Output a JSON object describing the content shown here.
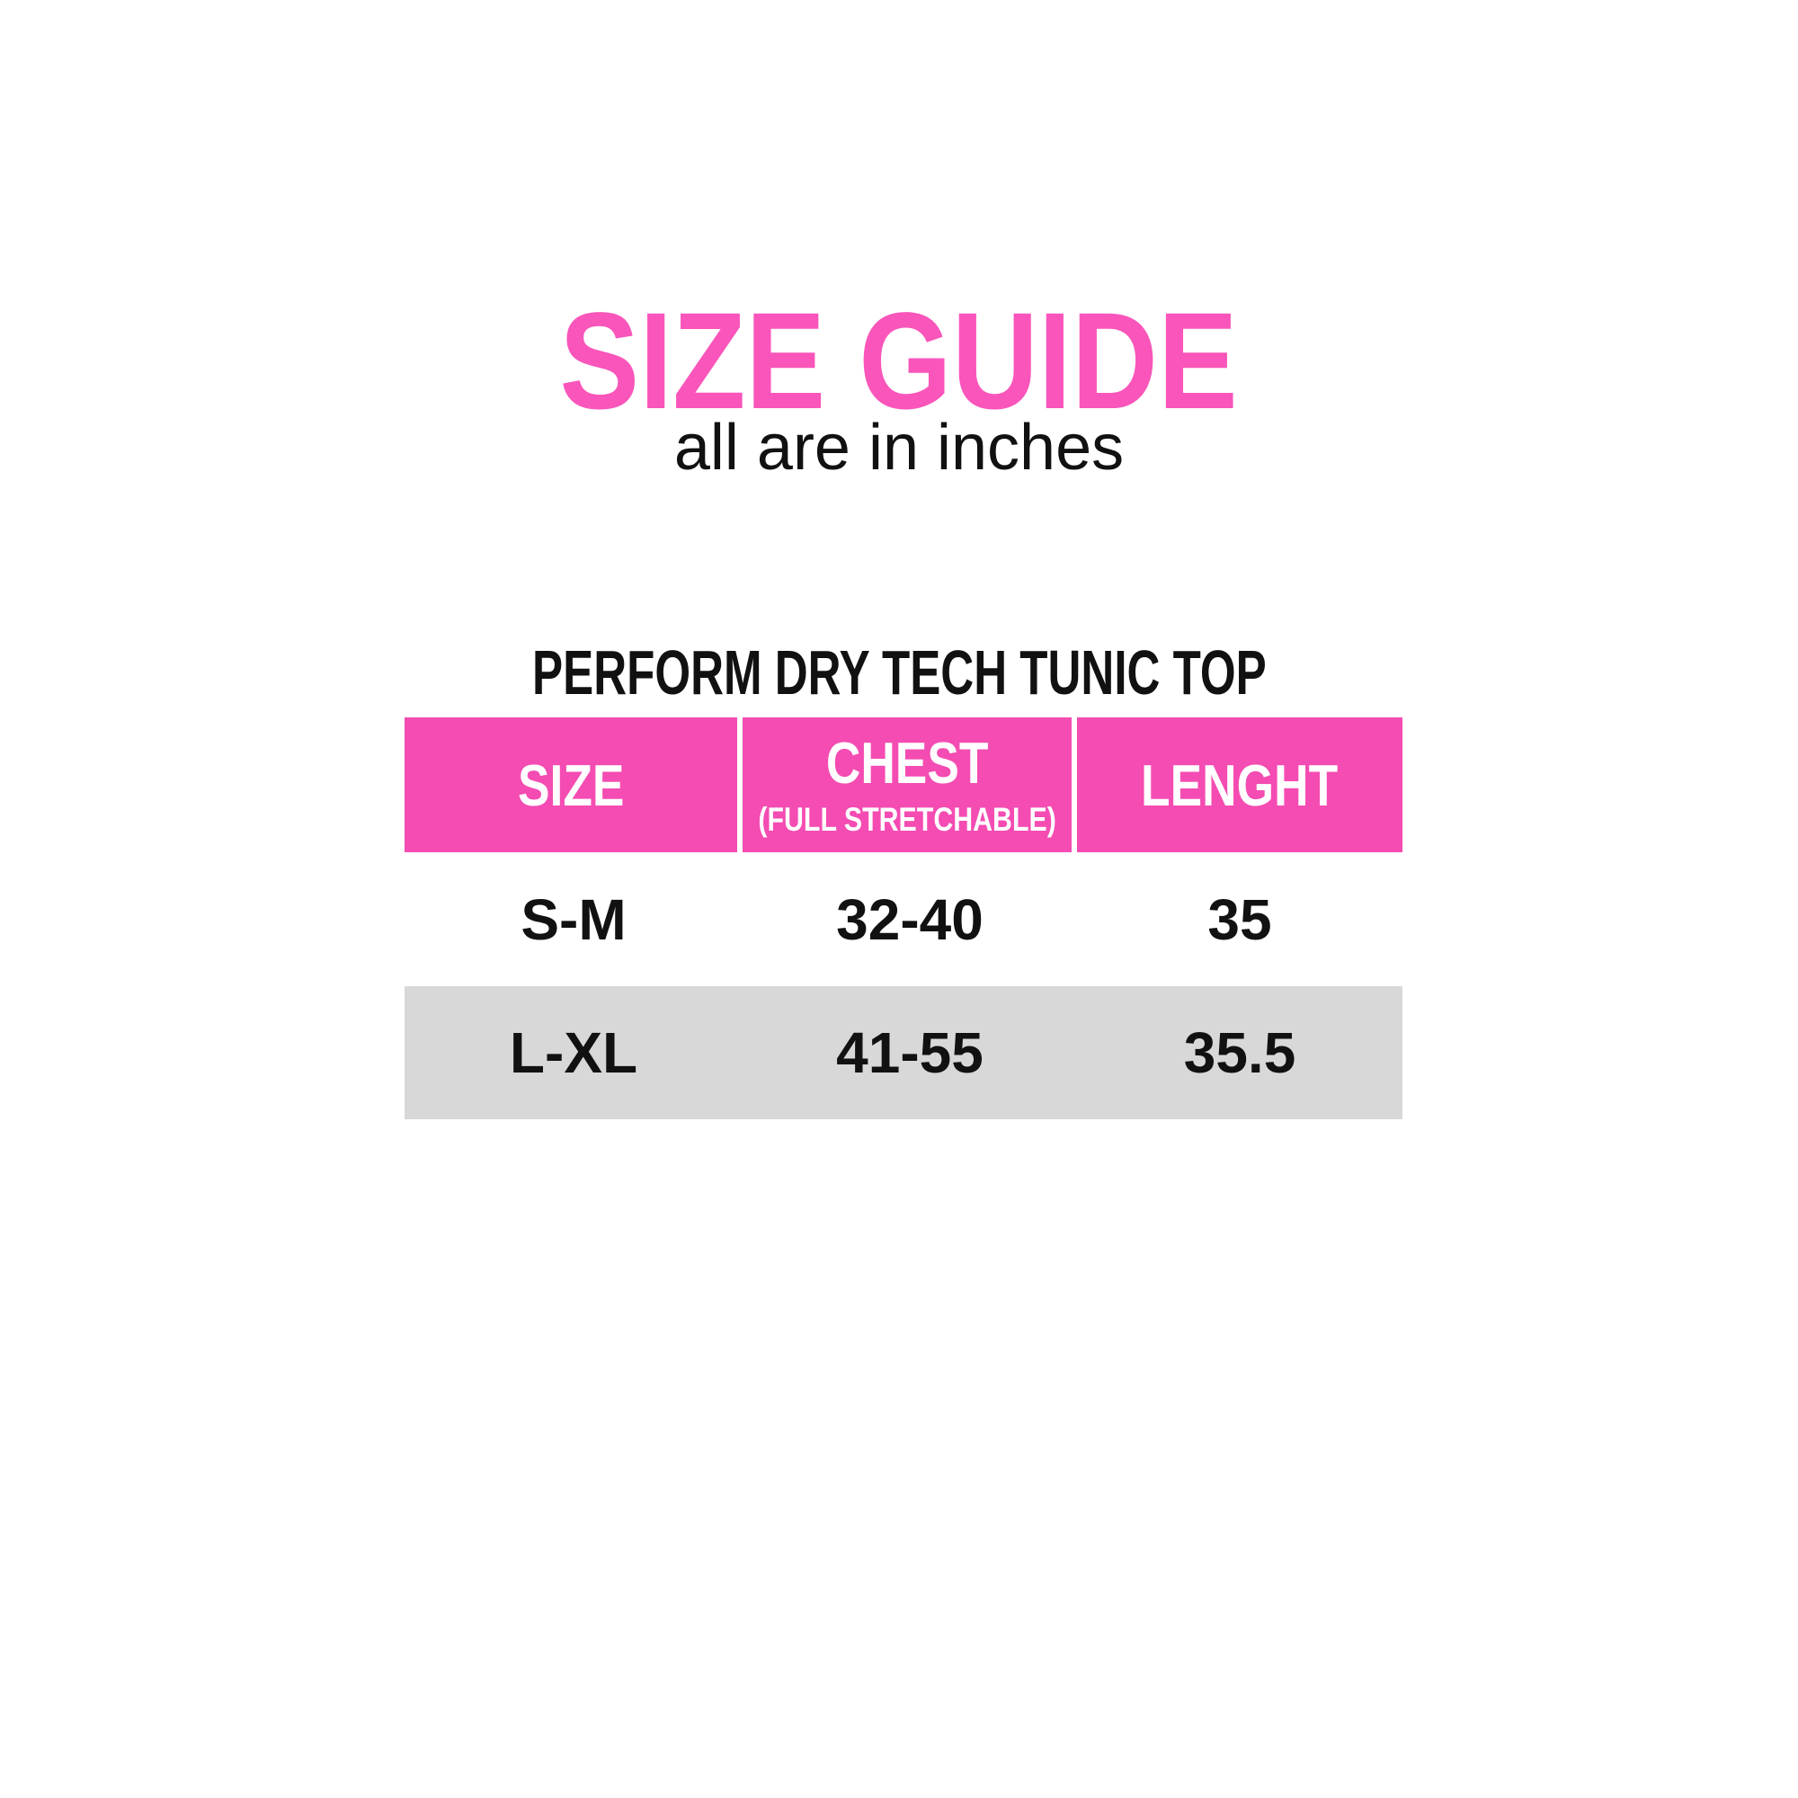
{
  "colors": {
    "background": "#FFFFFF",
    "title_pink": "#F955BA",
    "header_pink": "#F44CB2",
    "header_text": "#FFFFFF",
    "row_alt_gray": "#D8D8D8",
    "text_black": "#111111"
  },
  "chart_data": {
    "type": "table",
    "title": "SIZE GUIDE",
    "subtitle": "all are in inches",
    "table_title": "PERFORM DRY TECH TUNIC TOP",
    "columns": [
      {
        "label": "SIZE",
        "sublabel": ""
      },
      {
        "label": "CHEST",
        "sublabel": "(FULL STRETCHABLE)"
      },
      {
        "label": "LENGHT",
        "sublabel": ""
      }
    ],
    "rows": [
      {
        "size": "S-M",
        "chest": "32-40",
        "length": "35"
      },
      {
        "size": "L-XL",
        "chest": "41-55",
        "length": "35.5"
      }
    ]
  }
}
